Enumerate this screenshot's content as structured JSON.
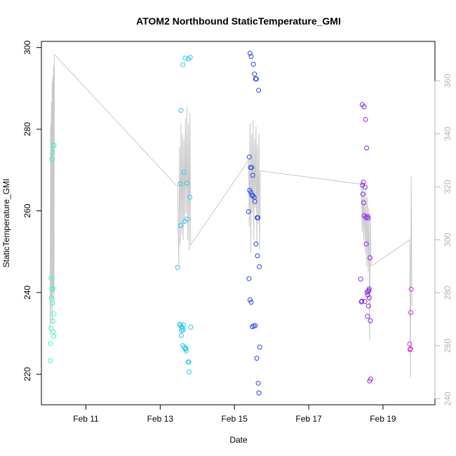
{
  "chart_data": {
    "type": "scatter",
    "title": "ATOM2 Northbound StaticTemperature_GMI",
    "xlabel": "Date",
    "ylabel": "StaticTemperature_GMI",
    "x_ticks": [
      "Feb 11",
      "Feb 13",
      "Feb 15",
      "Feb 17",
      "Feb 19"
    ],
    "x_tick_values": [
      11,
      13,
      15,
      17,
      19
    ],
    "xlim": [
      9.8,
      20.4
    ],
    "y_ticks": [
      220,
      240,
      260,
      280,
      300
    ],
    "ylim": [
      212.5,
      301.5
    ],
    "y2_ticks": [
      240,
      260,
      280,
      300,
      320,
      340,
      360
    ],
    "y2lim": [
      237.7,
      374.9
    ],
    "grid": false,
    "legend": "none",
    "colors": {
      "series_1": "#33ffaa",
      "series_2": "#22c8ee",
      "series_3": "#2244ee",
      "series_4": "#8822ee",
      "series_5": "#dd22dd",
      "line": "#c8c8c8",
      "right_axis": "#b3b3b3"
    },
    "series": [
      {
        "color": "#33ffaa",
        "x": [
          10.04,
          10.05,
          10.06,
          10.06,
          10.07,
          10.08,
          10.09,
          10.1,
          10.1,
          10.11,
          10.11,
          10.12,
          10.13,
          10.14
        ],
        "y": [
          223.3,
          227.5,
          231.2,
          243.5,
          238.7,
          272.7,
          240.8,
          237.4,
          274.3,
          233,
          241,
          230.4,
          229.3,
          234.8
        ]
      },
      {
        "color": "#33ffaa",
        "x": [
          10.13,
          10.14
        ],
        "y": [
          276.1,
          276
        ]
      },
      {
        "color": "#22c8ee",
        "x": [
          13.47,
          13.52,
          13.55,
          13.57,
          13.58,
          13.6,
          13.61,
          13.62,
          13.63,
          13.64,
          13.65,
          13.66,
          13.67,
          13.68,
          13.69,
          13.7,
          13.72,
          13.73,
          13.75,
          13.76,
          13.77,
          13.78,
          13.8,
          13.81,
          13.82
        ],
        "y": [
          246.1,
          232.2,
          232,
          229.5,
          230.7,
          231.3,
          227,
          230.8,
          232.1,
          269.4,
          226.6,
          257.4,
          297.4,
          226.1,
          226.3,
          225.7,
          266.8,
          258,
          223,
          297.2,
          223,
          220.5,
          263.3,
          297.6,
          231.5
        ]
      },
      {
        "color": "#22c8ee",
        "x": [
          13.54,
          13.55,
          13.56,
          13.61,
          13.57
        ],
        "y": [
          266.6,
          256.4,
          284.6,
          295.8,
          231.6
        ]
      },
      {
        "color": "#2244ee",
        "x": [
          15.38,
          15.39,
          15.4,
          15.41,
          15.42,
          15.43,
          15.44,
          15.45,
          15.46,
          15.47,
          15.48,
          15.49,
          15.5,
          15.51,
          15.52,
          15.53,
          15.54,
          15.55,
          15.56,
          15.57,
          15.58,
          15.59,
          15.6,
          15.61,
          15.62,
          15.63,
          15.64,
          15.65,
          15.66,
          15.67,
          15.68
        ],
        "y": [
          259.8,
          243.4,
          273.2,
          265,
          238.2,
          270.6,
          264.5,
          237.6,
          270.6,
          263.8,
          231.6,
          268.7,
          263.7,
          295.9,
          231.8,
          263.3,
          293.5,
          262.3,
          231.9,
          292.3,
          251.9,
          292.3,
          223.9,
          258.3,
          249,
          258.3,
          217.8,
          289.5,
          215.4,
          246.3,
          226.6
        ]
      },
      {
        "color": "#2244ee",
        "x": [
          15.42,
          15.45
        ],
        "y": [
          298.6,
          297.8
        ]
      },
      {
        "color": "#8822ee",
        "x": [
          18.4,
          18.42,
          18.43,
          18.44,
          18.45,
          18.46,
          18.47,
          18.48,
          18.49,
          18.5,
          18.51,
          18.52,
          18.53,
          18.54,
          18.55,
          18.56,
          18.57,
          18.58,
          18.59,
          18.6,
          18.61,
          18.62,
          18.63,
          18.64,
          18.65,
          18.66
        ],
        "y": [
          243.3,
          237.7,
          237.9,
          286,
          266.3,
          264.1,
          267,
          262,
          285.5,
          258.8,
          237.8,
          265.8,
          282.4,
          258.4,
          251.9,
          275.4,
          240,
          258.6,
          239.4,
          258.2,
          236.7,
          240.5,
          238.7,
          218.3,
          248.5,
          233.1
        ]
      },
      {
        "color": "#8822ee",
        "x": [
          18.63,
          18.67,
          18.58,
          18.6
        ],
        "y": [
          240.9,
          218.8,
          234.2,
          240.3
        ]
      },
      {
        "color": "#dd22dd",
        "x": [
          19.72,
          19.73,
          19.74,
          19.75,
          19.76
        ],
        "y": [
          227.4,
          226,
          226.2,
          235.1,
          240.8
        ]
      }
    ],
    "line_series": {
      "axis": "right",
      "color": "#c8c8c8",
      "x": [
        10.03,
        10.05,
        10.06,
        10.07,
        10.08,
        10.09,
        10.1,
        10.11,
        10.12,
        10.13,
        10.14,
        10.15,
        13.47,
        13.5,
        13.52,
        13.54,
        13.56,
        13.58,
        13.6,
        13.62,
        13.64,
        13.66,
        13.68,
        13.7,
        13.72,
        13.74,
        13.76,
        13.78,
        13.8,
        13.82,
        15.38,
        15.4,
        15.42,
        15.44,
        15.46,
        15.48,
        15.5,
        15.52,
        15.54,
        15.56,
        15.58,
        15.6,
        15.62,
        15.64,
        15.66,
        15.68,
        15.7,
        18.42,
        18.44,
        18.46,
        18.48,
        18.5,
        18.52,
        18.54,
        18.56,
        18.58,
        18.6,
        18.62,
        18.64,
        18.66,
        18.68,
        19.72,
        19.74,
        19.76,
        19.78
      ],
      "y": [
        264,
        344,
        270,
        352,
        278,
        360,
        268,
        362,
        280,
        366,
        276,
        370,
        320,
        290,
        335,
        298,
        344,
        302,
        340,
        300,
        338,
        306,
        346,
        310,
        350,
        300,
        344,
        296,
        348,
        298,
        330,
        305,
        344,
        295,
        340,
        310,
        345,
        300,
        338,
        312,
        343,
        298,
        336,
        306,
        340,
        296,
        326,
        321,
        303,
        322,
        300,
        318,
        295,
        320,
        290,
        316,
        288,
        312,
        262,
        310,
        290,
        300,
        248,
        324,
        275
      ]
    }
  }
}
